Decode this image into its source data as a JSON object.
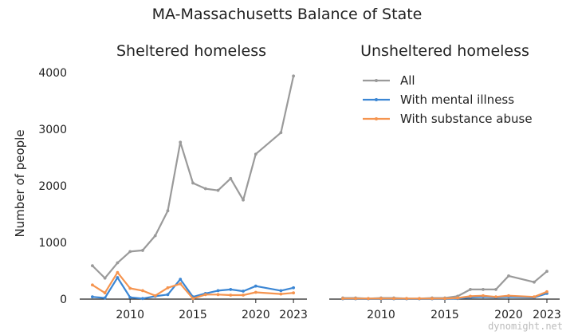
{
  "title": "MA-Massachusetts Balance of State",
  "watermark": "dynomight.net",
  "colors": {
    "All": "#9a9a9a",
    "With mental illness": "#3b86d4",
    "With substance abuse": "#f5944f"
  },
  "chart_data": [
    {
      "type": "line",
      "title": "Sheltered homeless",
      "ylabel": "Number of people",
      "xlim": [
        2006.5,
        2023.5
      ],
      "ylim": [
        0,
        4000
      ],
      "xticks": [
        2010,
        2015,
        2020,
        2023
      ],
      "yticks": [
        0,
        1000,
        2000,
        3000,
        4000
      ],
      "x": [
        2007,
        2008,
        2009,
        2010,
        2011,
        2012,
        2013,
        2014,
        2015,
        2016,
        2017,
        2018,
        2019,
        2020,
        2022,
        2023
      ],
      "series": [
        {
          "name": "All",
          "values": [
            590,
            370,
            640,
            840,
            860,
            1120,
            1560,
            2770,
            2050,
            1950,
            1920,
            2130,
            1750,
            2560,
            2940,
            3940
          ]
        },
        {
          "name": "With mental illness",
          "values": [
            40,
            20,
            380,
            30,
            10,
            50,
            80,
            350,
            40,
            100,
            150,
            170,
            140,
            230,
            150,
            200
          ]
        },
        {
          "name": "With substance abuse",
          "values": [
            250,
            110,
            470,
            190,
            150,
            60,
            200,
            270,
            10,
            80,
            80,
            70,
            70,
            120,
            90,
            110
          ]
        }
      ]
    },
    {
      "type": "line",
      "title": "Unsheltered homeless",
      "legend": "top-right",
      "xlim": [
        2006.5,
        2023.5
      ],
      "ylim": [
        0,
        4000
      ],
      "xticks": [
        2010,
        2015,
        2020,
        2023
      ],
      "x": [
        2007,
        2008,
        2009,
        2010,
        2011,
        2012,
        2013,
        2014,
        2015,
        2016,
        2017,
        2018,
        2019,
        2020,
        2022,
        2023
      ],
      "series": [
        {
          "name": "All",
          "values": [
            20,
            20,
            10,
            20,
            20,
            10,
            10,
            20,
            20,
            50,
            170,
            170,
            170,
            410,
            300,
            490
          ]
        },
        {
          "name": "With mental illness",
          "values": [
            5,
            5,
            5,
            5,
            5,
            5,
            5,
            5,
            5,
            10,
            30,
            40,
            30,
            40,
            30,
            100
          ]
        },
        {
          "name": "With substance abuse",
          "values": [
            10,
            10,
            10,
            10,
            10,
            10,
            10,
            10,
            10,
            20,
            50,
            60,
            40,
            60,
            40,
            130
          ]
        }
      ]
    }
  ]
}
